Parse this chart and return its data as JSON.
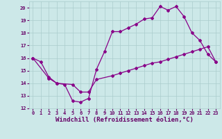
{
  "xlabel": "Windchill (Refroidissement éolien,°C)",
  "bg_color": "#cce8e8",
  "grid_color": "#aacccc",
  "line_color": "#880088",
  "marker": "D",
  "markersize": 2.0,
  "linewidth": 0.9,
  "xlim": [
    -0.5,
    23.5
  ],
  "ylim": [
    12,
    20.5
  ],
  "xticks": [
    0,
    1,
    2,
    3,
    4,
    5,
    6,
    7,
    8,
    9,
    10,
    11,
    12,
    13,
    14,
    15,
    16,
    17,
    18,
    19,
    20,
    21,
    22,
    23
  ],
  "yticks": [
    12,
    13,
    14,
    15,
    16,
    17,
    18,
    19,
    20
  ],
  "series1_x": [
    0,
    1,
    2,
    3,
    4,
    5,
    6,
    7,
    8,
    9,
    10,
    11,
    12,
    13,
    14,
    15,
    16,
    17,
    18,
    19,
    20,
    21,
    22,
    23
  ],
  "series1_y": [
    16.0,
    15.7,
    14.5,
    14.0,
    13.9,
    12.6,
    12.5,
    12.8,
    15.1,
    16.5,
    18.1,
    18.1,
    18.4,
    18.7,
    19.1,
    19.2,
    20.1,
    19.8,
    20.1,
    19.3,
    18.0,
    17.4,
    16.3,
    15.7
  ],
  "series2_x": [
    0,
    2,
    3,
    5,
    6,
    7,
    8,
    10,
    11,
    12,
    13,
    14,
    15,
    16,
    17,
    18,
    19,
    20,
    21,
    22,
    23
  ],
  "series2_y": [
    16.0,
    14.4,
    14.0,
    13.9,
    13.3,
    13.3,
    14.3,
    14.6,
    14.8,
    15.0,
    15.2,
    15.4,
    15.6,
    15.7,
    15.9,
    16.1,
    16.3,
    16.5,
    16.7,
    16.9,
    15.7
  ],
  "font_color": "#660066",
  "tick_fontsize": 5.0,
  "xlabel_fontsize": 6.5
}
